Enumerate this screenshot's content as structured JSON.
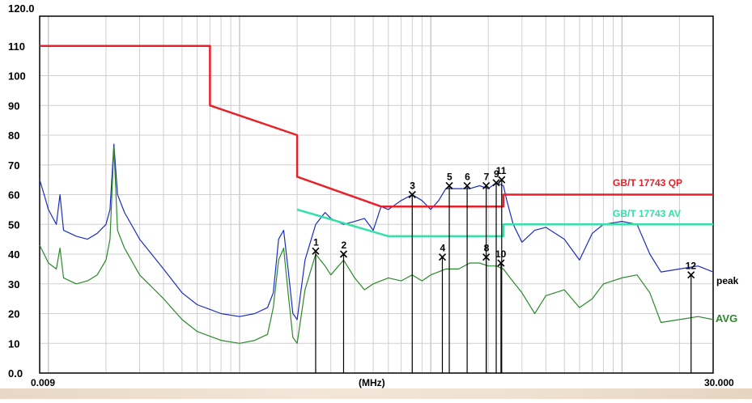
{
  "chart_data": {
    "type": "line",
    "x_scale": "log",
    "grid": true,
    "xlim": [
      0.009,
      30.0
    ],
    "ylim": [
      0,
      120
    ],
    "x_left_label": "0.009",
    "x_right_label": "30.000",
    "x_unit_label": "(MHz)",
    "y_top_label": "120.0",
    "y_ticks": [
      {
        "value": 110,
        "label": "110"
      },
      {
        "value": 100,
        "label": "100"
      },
      {
        "value": 90,
        "label": "90"
      },
      {
        "value": 80,
        "label": "80"
      },
      {
        "value": 70,
        "label": "70"
      },
      {
        "value": 60,
        "label": "60"
      },
      {
        "value": 50,
        "label": "50"
      },
      {
        "value": 40,
        "label": "40"
      },
      {
        "value": 30,
        "label": "30"
      },
      {
        "value": 20,
        "label": "20"
      },
      {
        "value": 10,
        "label": "10"
      },
      {
        "value": 0,
        "label": "0.0"
      }
    ],
    "series": [
      {
        "name": "GB/T 17743 QP",
        "color": "#e8202a",
        "points": [
          [
            0.009,
            110
          ],
          [
            0.07,
            110
          ],
          [
            0.07,
            90
          ],
          [
            0.2,
            80
          ],
          [
            0.2,
            66
          ],
          [
            0.55,
            56
          ],
          [
            2.4,
            56
          ],
          [
            2.4,
            60
          ],
          [
            30,
            60
          ]
        ]
      },
      {
        "name": "GB/T 17743 AV",
        "color": "#33e0a8",
        "points": [
          [
            0.2,
            55
          ],
          [
            0.6,
            46
          ],
          [
            2.4,
            46
          ],
          [
            2.4,
            50
          ],
          [
            30,
            50
          ]
        ]
      },
      {
        "name": "peak",
        "color": "#1d2cc4",
        "points": [
          [
            0.009,
            65
          ],
          [
            0.0095,
            60
          ],
          [
            0.01,
            55
          ],
          [
            0.011,
            50
          ],
          [
            0.0115,
            60
          ],
          [
            0.012,
            48
          ],
          [
            0.014,
            46
          ],
          [
            0.016,
            45
          ],
          [
            0.018,
            47
          ],
          [
            0.02,
            50
          ],
          [
            0.021,
            55
          ],
          [
            0.022,
            77
          ],
          [
            0.023,
            60
          ],
          [
            0.025,
            54
          ],
          [
            0.03,
            45
          ],
          [
            0.04,
            35
          ],
          [
            0.05,
            27
          ],
          [
            0.06,
            23
          ],
          [
            0.08,
            20
          ],
          [
            0.1,
            19
          ],
          [
            0.12,
            20
          ],
          [
            0.14,
            22
          ],
          [
            0.15,
            27
          ],
          [
            0.16,
            45
          ],
          [
            0.17,
            48
          ],
          [
            0.18,
            34
          ],
          [
            0.19,
            20
          ],
          [
            0.2,
            18
          ],
          [
            0.22,
            38
          ],
          [
            0.25,
            50
          ],
          [
            0.28,
            54
          ],
          [
            0.3,
            52
          ],
          [
            0.35,
            50
          ],
          [
            0.4,
            51
          ],
          [
            0.45,
            52
          ],
          [
            0.5,
            48
          ],
          [
            0.55,
            56
          ],
          [
            0.6,
            55
          ],
          [
            0.7,
            58
          ],
          [
            0.8,
            60
          ],
          [
            0.9,
            58
          ],
          [
            1.0,
            55
          ],
          [
            1.1,
            58
          ],
          [
            1.2,
            62
          ],
          [
            1.4,
            62
          ],
          [
            1.6,
            62
          ],
          [
            1.8,
            63
          ],
          [
            2.0,
            62
          ],
          [
            2.2,
            64
          ],
          [
            2.4,
            63
          ],
          [
            2.5,
            58
          ],
          [
            2.7,
            50
          ],
          [
            3.0,
            44
          ],
          [
            3.5,
            48
          ],
          [
            4.0,
            49
          ],
          [
            5.0,
            45
          ],
          [
            6.0,
            38
          ],
          [
            7.0,
            47
          ],
          [
            8.0,
            50
          ],
          [
            10.0,
            51
          ],
          [
            12.0,
            50
          ],
          [
            14.0,
            40
          ],
          [
            16.0,
            34
          ],
          [
            20.0,
            35
          ],
          [
            25.0,
            36
          ],
          [
            30.0,
            34
          ]
        ]
      },
      {
        "name": "AVG",
        "color": "#2a8a2a",
        "points": [
          [
            0.009,
            43
          ],
          [
            0.0095,
            40
          ],
          [
            0.01,
            37
          ],
          [
            0.011,
            35
          ],
          [
            0.0115,
            42
          ],
          [
            0.012,
            32
          ],
          [
            0.014,
            30
          ],
          [
            0.016,
            31
          ],
          [
            0.018,
            33
          ],
          [
            0.02,
            38
          ],
          [
            0.021,
            45
          ],
          [
            0.022,
            76
          ],
          [
            0.023,
            48
          ],
          [
            0.025,
            42
          ],
          [
            0.03,
            33
          ],
          [
            0.04,
            25
          ],
          [
            0.05,
            18
          ],
          [
            0.06,
            14
          ],
          [
            0.08,
            11
          ],
          [
            0.1,
            10
          ],
          [
            0.12,
            11
          ],
          [
            0.14,
            13
          ],
          [
            0.15,
            22
          ],
          [
            0.16,
            38
          ],
          [
            0.17,
            42
          ],
          [
            0.18,
            26
          ],
          [
            0.19,
            12
          ],
          [
            0.2,
            10
          ],
          [
            0.22,
            28
          ],
          [
            0.25,
            40
          ],
          [
            0.28,
            36
          ],
          [
            0.3,
            33
          ],
          [
            0.35,
            38
          ],
          [
            0.4,
            32
          ],
          [
            0.45,
            28
          ],
          [
            0.5,
            30
          ],
          [
            0.6,
            32
          ],
          [
            0.7,
            31
          ],
          [
            0.8,
            33
          ],
          [
            0.9,
            31
          ],
          [
            1.0,
            33
          ],
          [
            1.2,
            35
          ],
          [
            1.4,
            35
          ],
          [
            1.6,
            37
          ],
          [
            1.8,
            37
          ],
          [
            2.0,
            36
          ],
          [
            2.2,
            36
          ],
          [
            2.4,
            35
          ],
          [
            2.6,
            32
          ],
          [
            3.0,
            27
          ],
          [
            3.5,
            20
          ],
          [
            4.0,
            26
          ],
          [
            5.0,
            28
          ],
          [
            6.0,
            22
          ],
          [
            7.0,
            25
          ],
          [
            8.0,
            30
          ],
          [
            10.0,
            32
          ],
          [
            12.0,
            33
          ],
          [
            14.0,
            27
          ],
          [
            16.0,
            17
          ],
          [
            20.0,
            18
          ],
          [
            25.0,
            19
          ],
          [
            30.0,
            18
          ]
        ]
      }
    ],
    "series_labels": [
      {
        "text": "GB/T 17743 QP",
        "color": "#e8202a"
      },
      {
        "text": "GB/T 17743 AV",
        "color": "#33e0a8"
      },
      {
        "text": "peak",
        "color": "#000000"
      },
      {
        "text": "AVG",
        "color": "#2a8a2a"
      }
    ],
    "markers": [
      {
        "label": "1",
        "freq": 0.25,
        "level": 41
      },
      {
        "label": "2",
        "freq": 0.35,
        "level": 40
      },
      {
        "label": "3",
        "freq": 0.8,
        "level": 60
      },
      {
        "label": "4",
        "freq": 1.15,
        "level": 39
      },
      {
        "label": "5",
        "freq": 1.25,
        "level": 63
      },
      {
        "label": "6",
        "freq": 1.55,
        "level": 63
      },
      {
        "label": "7",
        "freq": 1.95,
        "level": 63
      },
      {
        "label": "8",
        "freq": 1.95,
        "level": 39
      },
      {
        "label": "9",
        "freq": 2.2,
        "level": 64
      },
      {
        "label": "10",
        "freq": 2.33,
        "level": 37
      },
      {
        "label": "11",
        "freq": 2.35,
        "level": 65
      },
      {
        "label": "12",
        "freq": 23.0,
        "level": 33
      }
    ]
  }
}
